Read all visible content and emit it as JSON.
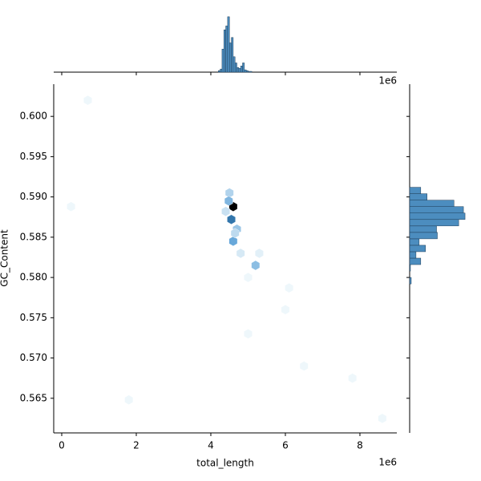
{
  "chart_data": {
    "type": "hexbin",
    "x_label": "total_length",
    "y_label": "GC_Content",
    "x_offset_label": "1e6",
    "x": [
      700000,
      250000,
      4500000,
      4600000,
      4550000,
      4480000,
      4700000,
      4600000,
      4800000,
      5200000,
      5300000,
      5000000,
      6100000,
      6000000,
      5000000,
      6500000,
      7800000,
      1800000,
      8600000,
      4650000,
      4400000
    ],
    "y": [
      0.602,
      0.5888,
      0.5905,
      0.5888,
      0.5872,
      0.5895,
      0.586,
      0.5845,
      0.583,
      0.5815,
      0.583,
      0.58,
      0.5787,
      0.576,
      0.573,
      0.569,
      0.5675,
      0.5648,
      0.5625,
      0.5855,
      0.5882
    ],
    "counts": [
      1,
      1,
      6,
      30,
      18,
      10,
      8,
      12,
      3,
      9,
      2,
      1,
      1,
      1,
      1,
      1,
      1,
      1,
      1,
      5,
      4
    ],
    "colormap": [
      "#eef7fb",
      "#3d8fd0",
      "#000000"
    ],
    "xlim": [
      -215000,
      8990000
    ],
    "ylim": [
      0.5607,
      0.604
    ],
    "xticks": [
      {
        "value": 0,
        "label": "0"
      },
      {
        "value": 2000000,
        "label": "2"
      },
      {
        "value": 4000000,
        "label": "4"
      },
      {
        "value": 6000000,
        "label": "6"
      },
      {
        "value": 8000000,
        "label": "8"
      }
    ],
    "yticks": [
      {
        "value": 0.565,
        "label": "0.565"
      },
      {
        "value": 0.57,
        "label": "0.570"
      },
      {
        "value": 0.575,
        "label": "0.575"
      },
      {
        "value": 0.58,
        "label": "0.580"
      },
      {
        "value": 0.585,
        "label": "0.585"
      },
      {
        "value": 0.59,
        "label": "0.590"
      },
      {
        "value": 0.595,
        "label": "0.595"
      },
      {
        "value": 0.6,
        "label": "0.600"
      }
    ],
    "marginal_x": {
      "offset_label": "1e6",
      "color": "#4c8dbf",
      "bins": [
        4200000,
        4250000,
        4300000,
        4350000,
        4400000,
        4450000,
        4500000,
        4550000,
        4600000,
        4650000,
        4700000,
        4750000,
        4800000,
        4850000,
        4900000,
        4950000,
        5000000,
        5050000,
        5100000
      ],
      "counts": [
        2,
        4,
        30,
        55,
        60,
        72,
        38,
        45,
        20,
        12,
        6,
        5,
        8,
        12,
        3,
        2,
        1,
        1
      ],
      "ylim": [
        0,
        75
      ]
    },
    "marginal_y": {
      "color": "#4c8dbf",
      "bins": [
        0.5792,
        0.58,
        0.5808,
        0.5816,
        0.5824,
        0.5832,
        0.584,
        0.5848,
        0.5856,
        0.5864,
        0.5872,
        0.588,
        0.5888,
        0.5896,
        0.5904,
        0.5912
      ],
      "counts": [
        2,
        0,
        1,
        14,
        8,
        20,
        12,
        35,
        34,
        62,
        70,
        68,
        56,
        22,
        14
      ],
      "xlim": [
        0,
        75
      ]
    }
  }
}
